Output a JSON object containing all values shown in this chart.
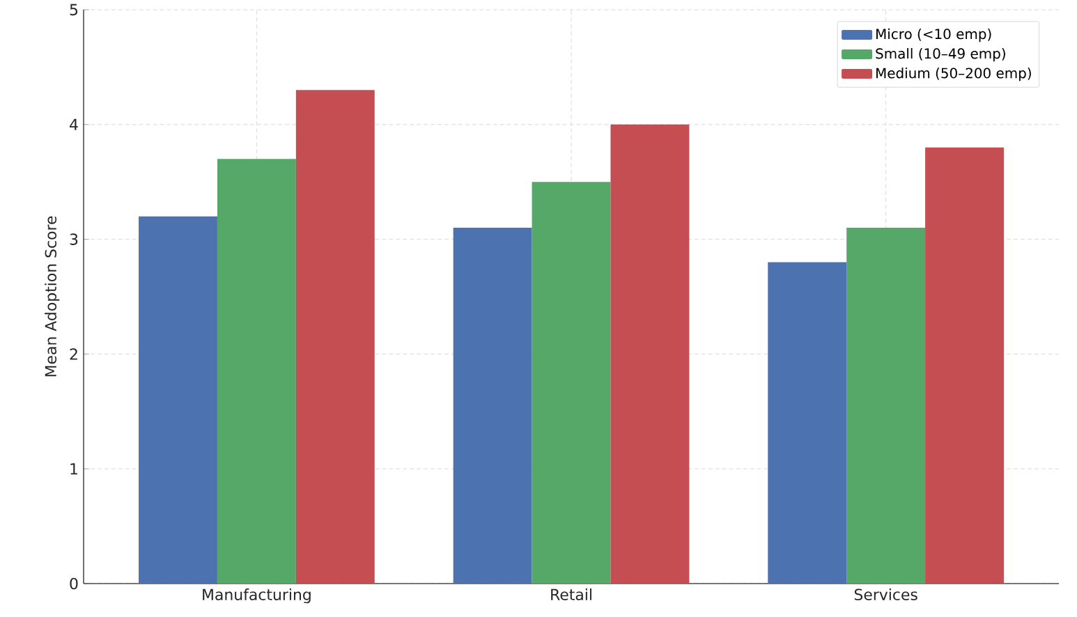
{
  "chart_data": {
    "type": "bar",
    "ylabel": "Mean Adoption Score",
    "categories": [
      "Manufacturing",
      "Retail",
      "Services"
    ],
    "series": [
      {
        "name": "Micro (<10 emp)",
        "color": "#4c72b0",
        "values": [
          3.2,
          3.1,
          2.8
        ]
      },
      {
        "name": "Small (10–49 emp)",
        "color": "#55a868",
        "values": [
          3.7,
          3.5,
          3.1
        ]
      },
      {
        "name": "Medium (50–200 emp)",
        "color": "#c44e52",
        "values": [
          4.3,
          4.0,
          3.8
        ]
      }
    ],
    "ylim": [
      0,
      5
    ],
    "yticks": [
      0,
      1,
      2,
      3,
      4,
      5
    ],
    "grid": true,
    "legend": "top right"
  }
}
